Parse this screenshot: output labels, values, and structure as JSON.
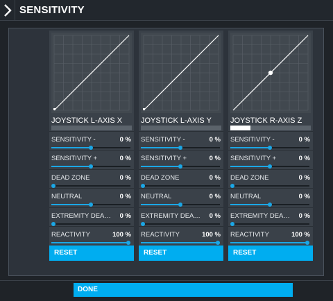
{
  "header": {
    "title": "SENSITIVITY",
    "back_icon": "chevron-right-icon"
  },
  "colors": {
    "accent": "#00adf0",
    "slider": "#1ba7e6",
    "panel": "#3a4149",
    "graph": "#41484f",
    "background": "#1f2328"
  },
  "panels": [
    {
      "name": "JOYSTICK L-AXIS X",
      "input_level": 0,
      "curve_marker": [
        0,
        0
      ],
      "params": [
        {
          "label": "SENSITIVITY -",
          "value": "0 %",
          "level": 0.5
        },
        {
          "label": "SENSITIVITY +",
          "value": "0 %",
          "level": 0.5
        },
        {
          "label": "DEAD ZONE",
          "value": "0 %",
          "level": 0
        },
        {
          "label": "NEUTRAL",
          "value": "0 %",
          "level": 0.5
        },
        {
          "label": "EXTREMITY DEAD ZONE",
          "value": "0 %",
          "level": 0
        },
        {
          "label": "REACTIVITY",
          "value": "100 %",
          "level": 1
        }
      ],
      "reset_label": "RESET"
    },
    {
      "name": "JOYSTICK L-AXIS Y",
      "input_level": 0,
      "curve_marker": [
        0,
        0
      ],
      "params": [
        {
          "label": "SENSITIVITY -",
          "value": "0 %",
          "level": 0.5
        },
        {
          "label": "SENSITIVITY +",
          "value": "0 %",
          "level": 0.5
        },
        {
          "label": "DEAD ZONE",
          "value": "0 %",
          "level": 0
        },
        {
          "label": "NEUTRAL",
          "value": "0 %",
          "level": 0.5
        },
        {
          "label": "EXTREMITY DEAD ZONE",
          "value": "0 %",
          "level": 0
        },
        {
          "label": "REACTIVITY",
          "value": "100 %",
          "level": 1
        }
      ],
      "reset_label": "RESET"
    },
    {
      "name": "JOYSTICK R-AXIS Z",
      "input_level": 0.5,
      "curve_marker": [
        0.5,
        0.5
      ],
      "params": [
        {
          "label": "SENSITIVITY -",
          "value": "0 %",
          "level": 0.5
        },
        {
          "label": "SENSITIVITY +",
          "value": "0 %",
          "level": 0.5
        },
        {
          "label": "DEAD ZONE",
          "value": "0 %",
          "level": 0
        },
        {
          "label": "NEUTRAL",
          "value": "0 %",
          "level": 0.5
        },
        {
          "label": "EXTREMITY DEAD ZONE",
          "value": "0 %",
          "level": 0
        },
        {
          "label": "REACTIVITY",
          "value": "100 %",
          "level": 1
        }
      ],
      "reset_label": "RESET"
    }
  ],
  "footer": {
    "done_label": "DONE"
  }
}
